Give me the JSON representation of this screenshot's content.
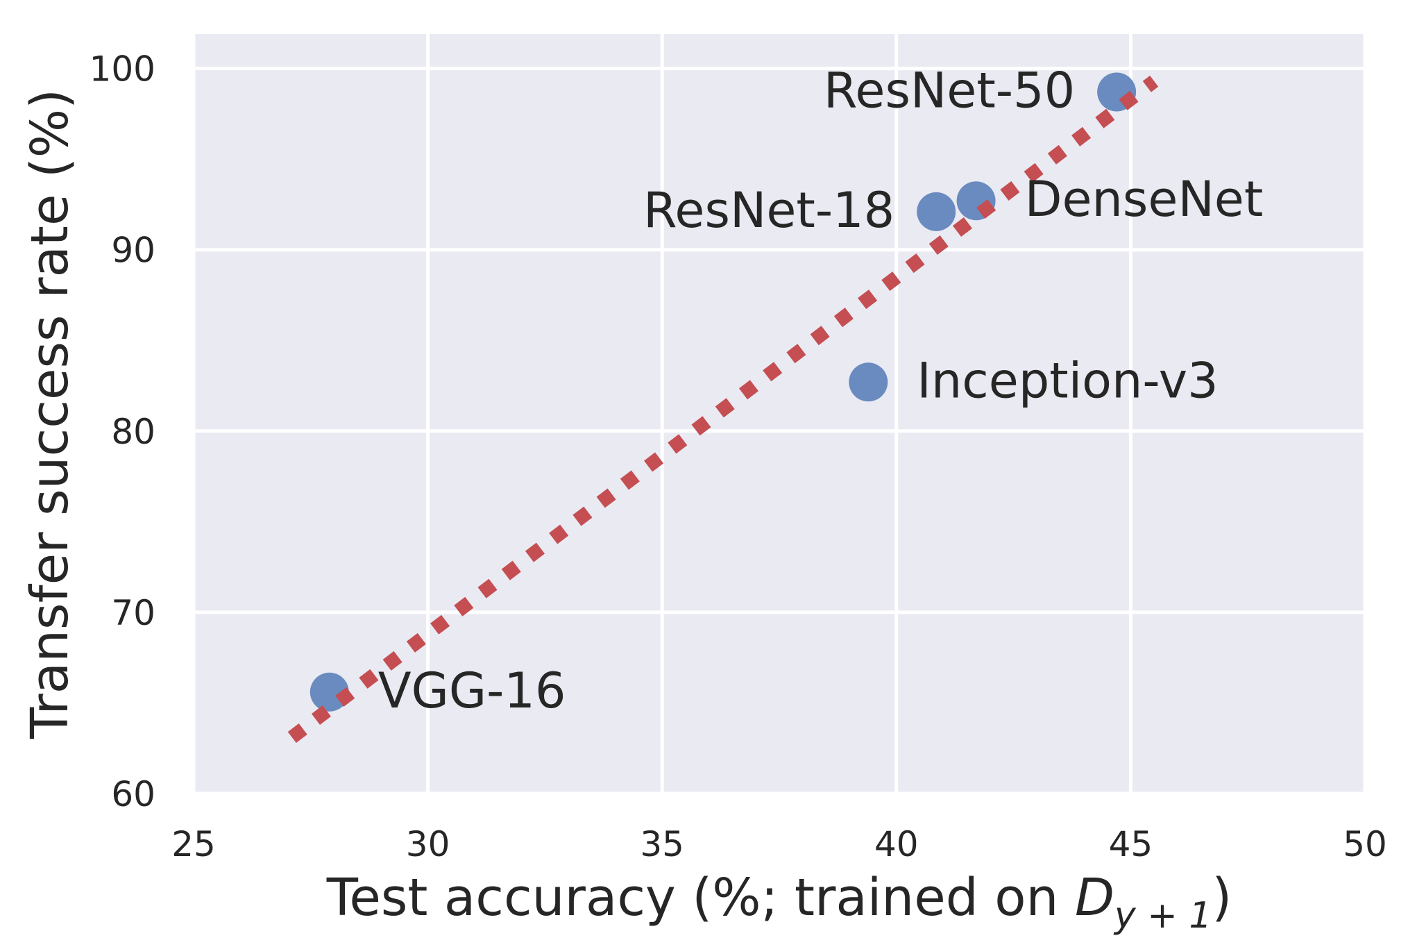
{
  "chart_data": {
    "type": "scatter",
    "title": "",
    "xlabel": "Test accuracy (%; trained on ",
    "xlabel_math": {
      "base": "D",
      "subscript": "y + 1"
    },
    "xlabel_close": ")",
    "ylabel": "Transfer success rate (%)",
    "xlim": [
      25,
      50
    ],
    "ylim": [
      60,
      101.9
    ],
    "xticks": [
      25,
      30,
      35,
      40,
      45,
      50
    ],
    "yticks": [
      60,
      70,
      80,
      90,
      100
    ],
    "xtick_labels": [
      "25",
      "30",
      "35",
      "40",
      "45",
      "50"
    ],
    "ytick_labels": [
      "60",
      "70",
      "80",
      "90",
      "100"
    ],
    "grid": true,
    "legend": "none",
    "points": [
      {
        "label": "VGG-16",
        "x": 27.9,
        "y": 65.6,
        "label_side": "right"
      },
      {
        "label": "Inception-v3",
        "x": 39.4,
        "y": 82.7,
        "label_side": "right"
      },
      {
        "label": "ResNet-18",
        "x": 40.85,
        "y": 92.1,
        "label_side": "left"
      },
      {
        "label": "DenseNet",
        "x": 41.7,
        "y": 92.7,
        "label_side": "right"
      },
      {
        "label": "ResNet-50",
        "x": 44.7,
        "y": 98.7,
        "label_side": "left"
      }
    ],
    "trend_line": {
      "style": "dotted",
      "x": [
        27.1,
        45.5
      ],
      "y": [
        63.1,
        99.3
      ]
    },
    "colors": {
      "background": "#EAEAF2",
      "grid": "#FFFFFF",
      "points": "#6A8BC0",
      "trend_line": "#C44E52",
      "text": "#262626"
    }
  }
}
